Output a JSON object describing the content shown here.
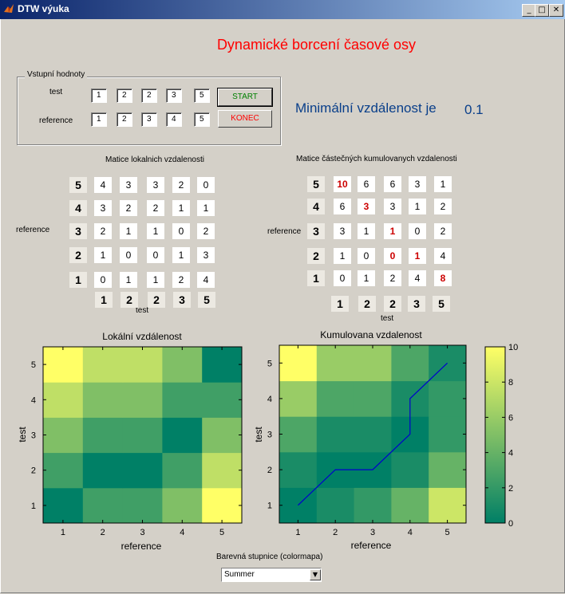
{
  "window": {
    "title": "DTW výuka",
    "controls": [
      "_",
      "□",
      "✕"
    ]
  },
  "main_title": "Dynamické borcení časové osy",
  "inputs": {
    "group_label": "Vstupní hodnoty",
    "test_label": "test",
    "reference_label": "reference",
    "test_values": [
      "1",
      "2",
      "2",
      "3",
      "5"
    ],
    "reference_values": [
      "1",
      "2",
      "3",
      "4",
      "5"
    ],
    "start_label": "START",
    "konec_label": "KONEC",
    "start_color": "#008000",
    "konec_color": "#ff0000"
  },
  "result": {
    "label": "Minimální vzdálenost je",
    "value": "0.1"
  },
  "local_matrix": {
    "title": "Matice lokalnich vzdalenosti",
    "row_axis_label": "reference",
    "col_axis_label": "test",
    "row_headers": [
      "5",
      "4",
      "3",
      "2",
      "1"
    ],
    "col_headers": [
      "1",
      "2",
      "2",
      "3",
      "5"
    ],
    "rows": [
      [
        "4",
        "3",
        "3",
        "2",
        "0"
      ],
      [
        "3",
        "2",
        "2",
        "1",
        "1"
      ],
      [
        "2",
        "1",
        "1",
        "0",
        "2"
      ],
      [
        "1",
        "0",
        "0",
        "1",
        "3"
      ],
      [
        "0",
        "1",
        "1",
        "2",
        "4"
      ]
    ]
  },
  "cumulative_matrix": {
    "title": "Matice částečných kumulovanych vzdalenosti",
    "row_axis_label": "reference",
    "col_axis_label": "test",
    "row_headers": [
      "5",
      "4",
      "3",
      "2",
      "1"
    ],
    "col_headers": [
      "1",
      "2",
      "2",
      "3",
      "5"
    ],
    "rows": [
      [
        "10",
        "6",
        "6",
        "3",
        "1"
      ],
      [
        "6",
        "3",
        "3",
        "1",
        "2"
      ],
      [
        "3",
        "1",
        "1",
        "0",
        "2"
      ],
      [
        "1",
        "0",
        "0",
        "1",
        "4"
      ],
      [
        "0",
        "1",
        "2",
        "4",
        "8"
      ]
    ],
    "path_cells": [
      [
        0,
        4
      ],
      [
        1,
        3
      ],
      [
        2,
        2
      ],
      [
        2,
        1
      ],
      [
        3,
        1
      ],
      [
        4,
        0
      ]
    ]
  },
  "chart_data": [
    {
      "type": "heatmap",
      "title": "Lokální vzdálenost",
      "xlabel": "reference",
      "ylabel": "test",
      "x": [
        1,
        2,
        3,
        4,
        5
      ],
      "y": [
        1,
        2,
        3,
        4,
        5
      ],
      "values_by_y": [
        [
          0,
          1,
          1,
          2,
          4
        ],
        [
          1,
          0,
          0,
          1,
          3
        ],
        [
          2,
          1,
          1,
          0,
          2
        ],
        [
          3,
          2,
          2,
          1,
          1
        ],
        [
          4,
          3,
          3,
          2,
          0
        ]
      ],
      "clim": [
        0,
        4
      ]
    },
    {
      "type": "heatmap",
      "title": "Kumulovana vzdalenost",
      "xlabel": "reference",
      "ylabel": "test",
      "x": [
        1,
        2,
        3,
        4,
        5
      ],
      "y": [
        1,
        2,
        3,
        4,
        5
      ],
      "values_by_y": [
        [
          0,
          1,
          2,
          4,
          8
        ],
        [
          1,
          0,
          0,
          1,
          4
        ],
        [
          3,
          1,
          1,
          0,
          2
        ],
        [
          6,
          3,
          3,
          1,
          2
        ],
        [
          10,
          6,
          6,
          3,
          1
        ]
      ],
      "clim": [
        0,
        10
      ],
      "path": {
        "x": [
          1,
          2,
          3,
          4,
          4,
          5
        ],
        "y": [
          1,
          2,
          2,
          3,
          4,
          5
        ],
        "color": "#0000cc"
      }
    }
  ],
  "colorbar": {
    "ticks": [
      "0",
      "2",
      "4",
      "6",
      "8",
      "10"
    ],
    "min": 0,
    "max": 10
  },
  "colormap": {
    "label": "Barevná stupnice (colormapa)",
    "selected": "Summer"
  }
}
